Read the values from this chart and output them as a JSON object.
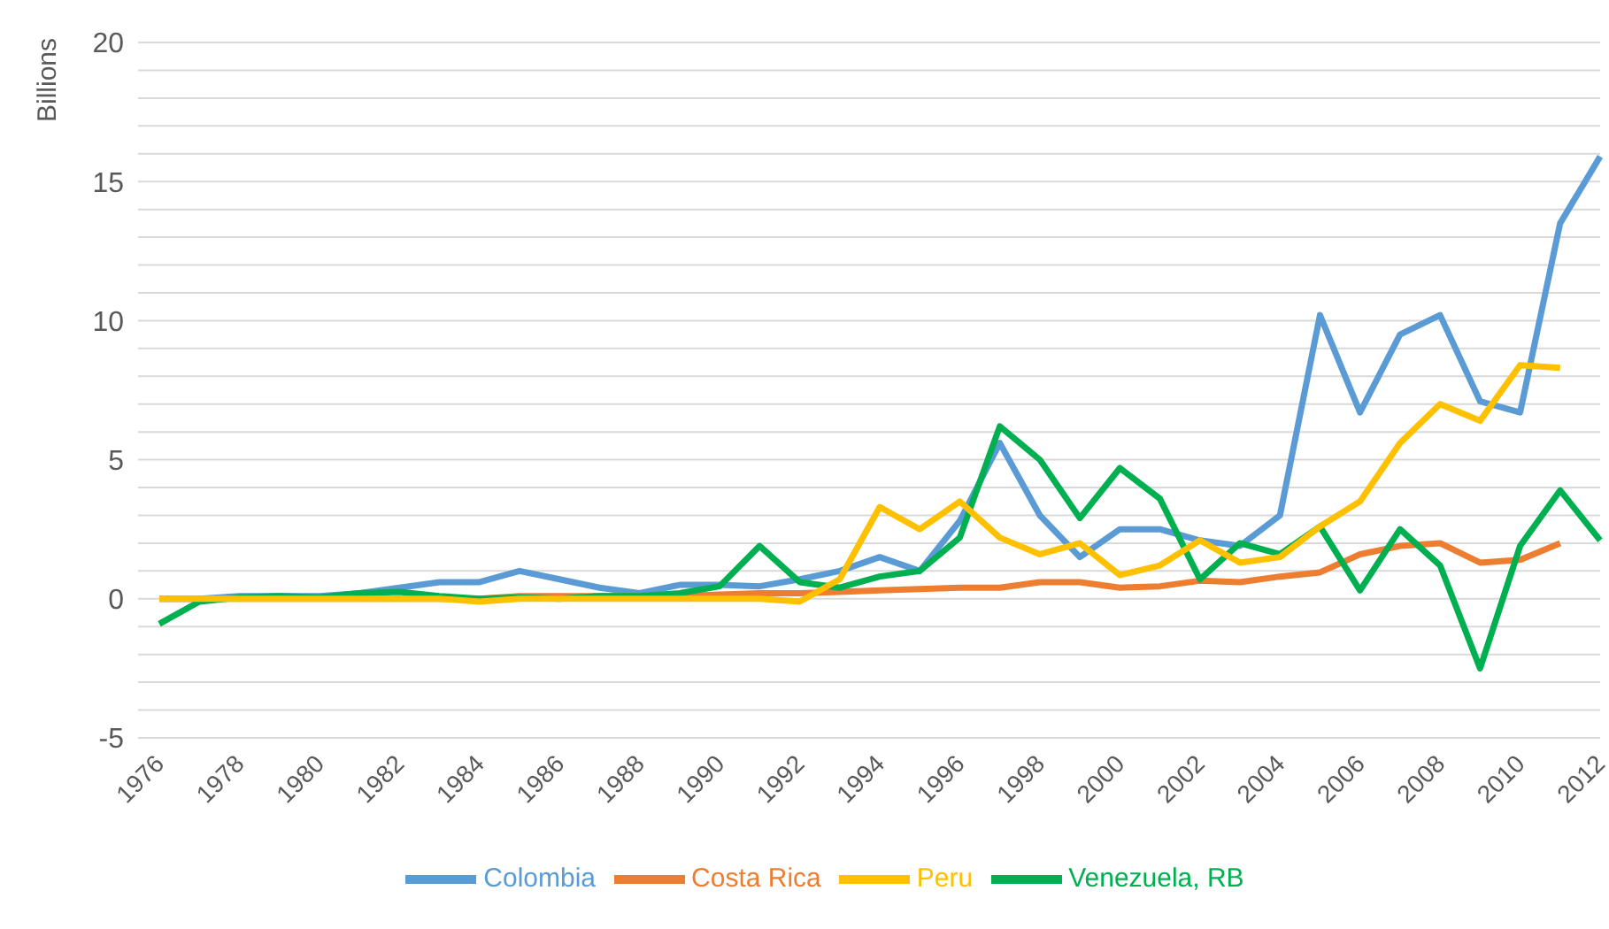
{
  "chart_data": {
    "type": "line",
    "ylabel": "Billions",
    "categories": [
      "1976",
      null,
      "1978",
      null,
      "1980",
      null,
      "1982",
      null,
      "1984",
      null,
      "1986",
      null,
      "1988",
      null,
      "1990",
      null,
      "1992",
      null,
      "1994",
      null,
      "1996",
      null,
      "1998",
      null,
      "2000",
      null,
      "2002",
      null,
      "2004",
      null,
      "2006",
      null,
      "2008",
      null,
      "2010",
      null,
      "2012"
    ],
    "series": [
      {
        "name": "Colombia",
        "color": "#5b9bd5",
        "values": [
          0,
          0,
          0.1,
          0.1,
          0.1,
          0.2,
          0.4,
          0.6,
          0.6,
          1.0,
          0.7,
          0.4,
          0.2,
          0.5,
          0.5,
          0.45,
          0.7,
          1.0,
          1.5,
          1.0,
          2.8,
          5.6,
          3.0,
          1.5,
          2.5,
          2.5,
          2.1,
          1.9,
          3.0,
          10.2,
          6.7,
          9.5,
          10.2,
          7.1,
          6.7,
          13.5,
          15.9
        ]
      },
      {
        "name": "Costa Rica",
        "color": "#ed7d31",
        "values": [
          0,
          0,
          0,
          0,
          0,
          0,
          0,
          0,
          0,
          0.1,
          0.1,
          0.1,
          0.1,
          0.1,
          0.15,
          0.2,
          0.2,
          0.25,
          0.3,
          0.35,
          0.4,
          0.4,
          0.6,
          0.6,
          0.4,
          0.45,
          0.65,
          0.6,
          0.8,
          0.95,
          1.6,
          1.9,
          2.0,
          1.3,
          1.4,
          2.0,
          null
        ]
      },
      {
        "name": "Venezuela, RB",
        "color": "#00b050",
        "values": [
          -0.9,
          -0.1,
          0.05,
          0.1,
          0.05,
          0.2,
          0.25,
          0.1,
          0,
          0.05,
          0,
          0.1,
          0.1,
          0.2,
          0.45,
          1.9,
          0.6,
          0.4,
          0.8,
          1.0,
          2.2,
          6.2,
          5.0,
          2.9,
          4.7,
          3.6,
          0.7,
          2.0,
          1.6,
          2.6,
          0.3,
          2.5,
          1.2,
          -2.5,
          1.9,
          3.9,
          2.1
        ]
      },
      {
        "name": "Peru",
        "color": "#ffc000",
        "values": [
          0,
          0,
          0,
          0,
          0,
          0,
          0,
          0,
          -0.1,
          0,
          0,
          0,
          0,
          0,
          0,
          0,
          -0.1,
          0.7,
          3.3,
          2.5,
          3.5,
          2.2,
          1.6,
          2.0,
          0.85,
          1.2,
          2.1,
          1.3,
          1.5,
          2.6,
          3.5,
          5.6,
          7.0,
          6.4,
          8.4,
          8.3,
          null
        ]
      }
    ],
    "ylim": [
      -5,
      20
    ],
    "yticks": [
      -5,
      {
        "value": -4,
        "label": null
      },
      {
        "value": -3,
        "label": null
      },
      {
        "value": -2,
        "label": null
      },
      {
        "value": -1,
        "label": null
      },
      0,
      {
        "value": 1,
        "label": null
      },
      {
        "value": 2,
        "label": null
      },
      {
        "value": 3,
        "label": null
      },
      {
        "value": 4,
        "label": null
      },
      5,
      {
        "value": 6,
        "label": null
      },
      {
        "value": 7,
        "label": null
      },
      {
        "value": 8,
        "label": null
      },
      {
        "value": 9,
        "label": null
      },
      10,
      {
        "value": 11,
        "label": null
      },
      {
        "value": 12,
        "label": null
      },
      {
        "value": 13,
        "label": null
      },
      {
        "value": 14,
        "label": null
      },
      15,
      {
        "value": 16,
        "label": null
      },
      {
        "value": 17,
        "label": null
      },
      {
        "value": 18,
        "label": null
      },
      {
        "value": 19,
        "label": null
      },
      20
    ],
    "grid": "y",
    "legend": "bottom",
    "marker": "none",
    "line_style": "solid"
  }
}
